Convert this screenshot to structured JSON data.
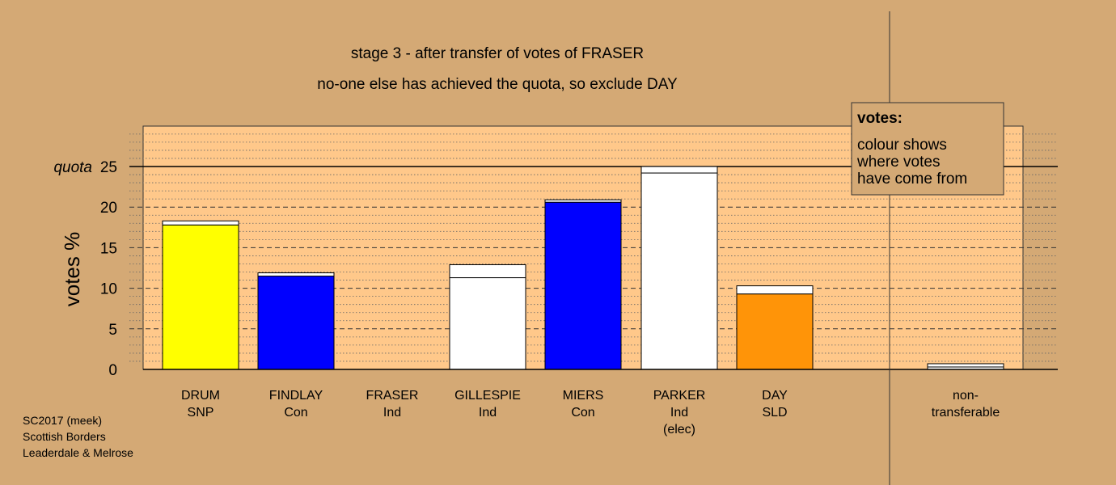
{
  "chart_data": {
    "type": "bar",
    "title": "stage 3 - after transfer of votes of FRASER",
    "subtitle": "no-one else has achieved the quota, so exclude DAY",
    "ylabel": "votes %",
    "ylim": [
      0,
      30
    ],
    "yticks": [
      0,
      5,
      10,
      15,
      20,
      25
    ],
    "quota": {
      "label": "quota",
      "value": 25
    },
    "grid": true,
    "legend": {
      "placement": "top-right",
      "title": "votes:",
      "lines": [
        "colour shows",
        "where votes",
        "have come from"
      ]
    },
    "candidates": [
      {
        "name": "DRUM",
        "party": "SNP",
        "color": "#ffff00",
        "segments": [
          {
            "source": "SNP",
            "color": "#ffff00",
            "value": 17.8
          },
          {
            "source": "other",
            "color": "#ffffff",
            "value": 0.5
          }
        ]
      },
      {
        "name": "FINDLAY",
        "party": "Con",
        "color": "#0000ff",
        "segments": [
          {
            "source": "Con",
            "color": "#0000ff",
            "value": 11.5
          },
          {
            "source": "other",
            "color": "#ffffff",
            "value": 0.4
          }
        ]
      },
      {
        "name": "FRASER",
        "party": "Ind",
        "color": "#ffffff",
        "segments": []
      },
      {
        "name": "GILLESPIE",
        "party": "Ind",
        "color": "#ffffff",
        "segments": [
          {
            "source": "Ind",
            "color": "#ffffff",
            "value": 11.3
          },
          {
            "source": "FRASER",
            "color": "#ffffff",
            "value": 1.6
          }
        ]
      },
      {
        "name": "MIERS",
        "party": "Con",
        "color": "#0000ff",
        "segments": [
          {
            "source": "Con",
            "color": "#0000ff",
            "value": 20.6
          },
          {
            "source": "other",
            "color": "#ffffff",
            "value": 0.3
          }
        ]
      },
      {
        "name": "PARKER",
        "party": "Ind",
        "note": "(elec)",
        "color": "#ffffff",
        "segments": [
          {
            "source": "Ind",
            "color": "#ffffff",
            "value": 24.2
          },
          {
            "source": "other",
            "color": "#ffffff",
            "value": 0.8
          }
        ]
      },
      {
        "name": "DAY",
        "party": "SLD",
        "color": "#ff9408",
        "segments": [
          {
            "source": "SLD",
            "color": "#ff9408",
            "value": 9.3
          },
          {
            "source": "other",
            "color": "#ffffff",
            "value": 1.0
          }
        ]
      }
    ],
    "nontransferable": {
      "label_lines": [
        "non-",
        "transferable"
      ],
      "segments": [
        {
          "source": "other",
          "color": "#ffffff",
          "value": 0.3
        },
        {
          "source": "FRASER",
          "color": "#ffffff",
          "value": 0.4
        }
      ]
    }
  },
  "footer": {
    "lines": [
      "SC2017 (meek)",
      "Scottish Borders",
      "Leaderdale & Melrose"
    ]
  },
  "colors": {
    "background": "#d4a975",
    "plot_area": "#ffc88a",
    "axis": "#000000",
    "grid": "#555555"
  }
}
